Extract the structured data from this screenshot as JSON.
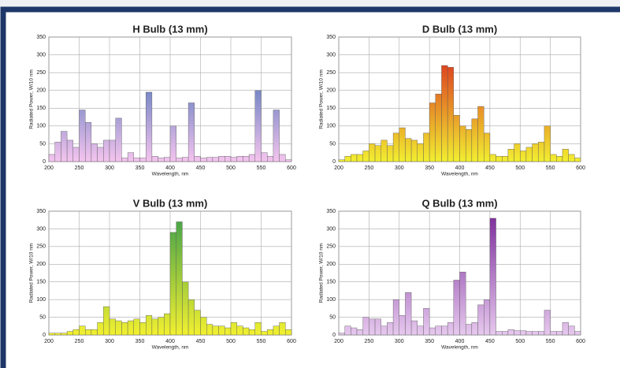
{
  "chart_data": [
    {
      "type": "histogram",
      "title": "H Bulb (13 mm)",
      "xlabel": "Wavelength, nm",
      "ylabel": "Radiated Power, W/10 nm",
      "bins": [
        200,
        210,
        220,
        230,
        240,
        250,
        260,
        270,
        280,
        290,
        300,
        310,
        320,
        330,
        340,
        350,
        360,
        370,
        380,
        390,
        400,
        410,
        420,
        430,
        440,
        450,
        460,
        470,
        480,
        490,
        500,
        510,
        520,
        530,
        540,
        550,
        560,
        570,
        580,
        590,
        600
      ],
      "counts": [
        20,
        55,
        85,
        60,
        40,
        145,
        110,
        50,
        40,
        60,
        60,
        122,
        10,
        25,
        10,
        10,
        195,
        15,
        10,
        12,
        100,
        10,
        12,
        165,
        15,
        10,
        12,
        12,
        15,
        15,
        12,
        15,
        15,
        20,
        200,
        25,
        15,
        145,
        20,
        5
      ],
      "gradient": [
        "#f4c4ee",
        "#1a5aa8"
      ],
      "xlim": [
        200,
        600
      ],
      "ylim": [
        0,
        350
      ],
      "xticks": [
        200,
        250,
        300,
        350,
        400,
        450,
        500,
        550,
        600
      ],
      "yticks": [
        0,
        50,
        100,
        150,
        200,
        250,
        300,
        350
      ],
      "grid": true
    },
    {
      "type": "histogram",
      "title": "D Bulb (13 mm)",
      "xlabel": "Wavelength, nm",
      "ylabel": "Radiated Power, W/10 nm",
      "bins": [
        200,
        210,
        220,
        230,
        240,
        250,
        260,
        270,
        280,
        290,
        300,
        310,
        320,
        330,
        340,
        350,
        360,
        370,
        380,
        390,
        400,
        410,
        420,
        430,
        440,
        450,
        460,
        470,
        480,
        490,
        500,
        510,
        520,
        530,
        540,
        550,
        560,
        570,
        580,
        590,
        600
      ],
      "counts": [
        5,
        15,
        20,
        20,
        30,
        50,
        45,
        60,
        45,
        80,
        95,
        65,
        60,
        50,
        80,
        165,
        190,
        270,
        265,
        130,
        100,
        90,
        120,
        155,
        80,
        20,
        15,
        15,
        35,
        50,
        30,
        40,
        50,
        55,
        100,
        20,
        15,
        35,
        20,
        10
      ],
      "gradient": [
        "#f2ee30",
        "#d8141c"
      ],
      "xlim": [
        200,
        600
      ],
      "ylim": [
        0,
        350
      ],
      "xticks": [
        200,
        250,
        300,
        350,
        400,
        450,
        500,
        550,
        600
      ],
      "yticks": [
        0,
        50,
        100,
        150,
        200,
        250,
        300,
        350
      ],
      "grid": true
    },
    {
      "type": "histogram",
      "title": "V Bulb (13 mm)",
      "xlabel": "Wavelength, nm",
      "ylabel": "Radiated Power, W/10 nm",
      "bins": [
        200,
        210,
        220,
        230,
        240,
        250,
        260,
        270,
        280,
        290,
        300,
        310,
        320,
        330,
        340,
        350,
        360,
        370,
        380,
        390,
        400,
        410,
        420,
        430,
        440,
        450,
        460,
        470,
        480,
        490,
        500,
        510,
        520,
        530,
        540,
        550,
        560,
        570,
        580,
        590,
        600
      ],
      "counts": [
        5,
        5,
        5,
        10,
        15,
        25,
        15,
        15,
        35,
        80,
        45,
        40,
        35,
        40,
        45,
        35,
        55,
        45,
        50,
        60,
        290,
        320,
        150,
        100,
        70,
        50,
        30,
        25,
        25,
        20,
        35,
        25,
        20,
        15,
        35,
        10,
        15,
        25,
        35,
        15
      ],
      "gradient": [
        "#f2f030",
        "#3c9e4a"
      ],
      "xlim": [
        200,
        600
      ],
      "ylim": [
        0,
        350
      ],
      "xticks": [
        200,
        250,
        300,
        350,
        400,
        450,
        500,
        550,
        600
      ],
      "yticks": [
        0,
        50,
        100,
        150,
        200,
        250,
        300,
        350
      ],
      "grid": true
    },
    {
      "type": "histogram",
      "title": "Q Bulb (13 mm)",
      "xlabel": "Wavelength, nm",
      "ylabel": "Radiated Power, W/10 nm",
      "bins": [
        200,
        210,
        220,
        230,
        240,
        250,
        260,
        270,
        280,
        290,
        300,
        310,
        320,
        330,
        340,
        350,
        360,
        370,
        380,
        390,
        400,
        410,
        420,
        430,
        440,
        450,
        460,
        470,
        480,
        490,
        500,
        510,
        520,
        530,
        540,
        550,
        560,
        570,
        580,
        590,
        600
      ],
      "counts": [
        5,
        25,
        20,
        15,
        50,
        45,
        45,
        25,
        35,
        100,
        55,
        120,
        40,
        25,
        75,
        20,
        25,
        25,
        35,
        155,
        178,
        30,
        35,
        85,
        100,
        330,
        10,
        10,
        15,
        12,
        12,
        10,
        10,
        10,
        70,
        10,
        10,
        35,
        25,
        10
      ],
      "gradient": [
        "#e6c8ee",
        "#7a2a9a"
      ],
      "xlim": [
        200,
        600
      ],
      "ylim": [
        0,
        350
      ],
      "xticks": [
        200,
        250,
        300,
        350,
        400,
        450,
        500,
        550,
        600
      ],
      "yticks": [
        0,
        50,
        100,
        150,
        200,
        250,
        300,
        350
      ],
      "grid": true
    }
  ]
}
